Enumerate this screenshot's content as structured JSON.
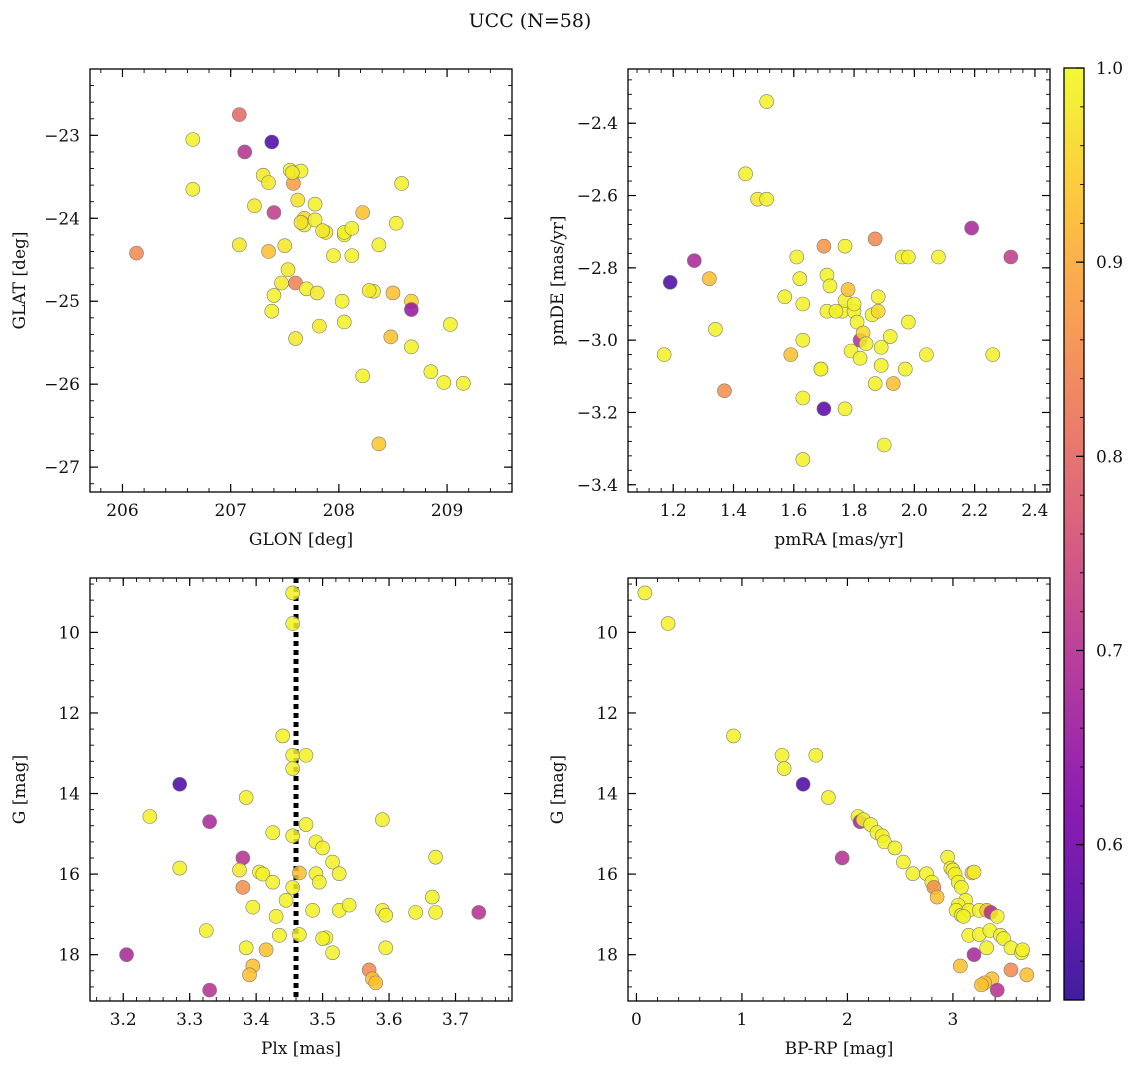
{
  "figure": {
    "title": "UCC (N=58)"
  },
  "colorbar": {
    "range": [
      0.52,
      1.0
    ],
    "ticks": [
      "0.6",
      "0.7",
      "0.8",
      "0.9",
      "1.0"
    ],
    "tick_values": [
      0.6,
      0.7,
      0.8,
      0.9,
      1.0
    ],
    "colormap": "plasma"
  },
  "chart_data": [
    {
      "type": "scatter",
      "name": "position",
      "xlabel": "GLON [deg]",
      "ylabel": "GLAT [deg]",
      "xlim": [
        205.7,
        209.6
      ],
      "ylim": [
        -27.3,
        -22.2
      ],
      "y_inverted": false,
      "xticks": [
        206,
        207,
        208,
        209
      ],
      "yticks": [
        -27,
        -26,
        -25,
        -24,
        -23
      ],
      "xticklabels": [
        "206",
        "207",
        "208",
        "209"
      ],
      "yticklabels": [
        "−27",
        "−26",
        "−25",
        "−24",
        "−23"
      ],
      "points": [
        [
          206.13,
          -24.42,
          0.85
        ],
        [
          206.65,
          -23.05,
          0.99
        ],
        [
          206.65,
          -23.65,
          0.99
        ],
        [
          207.08,
          -22.75,
          0.8
        ],
        [
          207.13,
          -23.2,
          0.7
        ],
        [
          207.38,
          -23.08,
          0.55
        ],
        [
          207.08,
          -24.32,
          0.98
        ],
        [
          207.3,
          -23.48,
          0.98
        ],
        [
          207.35,
          -23.57,
          0.98
        ],
        [
          207.22,
          -23.85,
          0.98
        ],
        [
          207.35,
          -24.4,
          0.93
        ],
        [
          207.4,
          -23.93,
          0.72
        ],
        [
          207.4,
          -24.93,
          0.99
        ],
        [
          207.38,
          -25.12,
          0.99
        ],
        [
          207.47,
          -24.78,
          0.98
        ],
        [
          207.5,
          -24.33,
          0.98
        ],
        [
          207.53,
          -24.62,
          0.98
        ],
        [
          207.55,
          -23.42,
          1.0
        ],
        [
          207.58,
          -23.58,
          0.88
        ],
        [
          207.6,
          -24.78,
          0.84
        ],
        [
          207.6,
          -25.45,
          0.98
        ],
        [
          207.62,
          -23.78,
          0.97
        ],
        [
          207.65,
          -23.43,
          0.99
        ],
        [
          207.68,
          -24.0,
          0.96
        ],
        [
          207.68,
          -24.08,
          0.99
        ],
        [
          207.7,
          -24.85,
          0.99
        ],
        [
          207.78,
          -24.02,
          0.99
        ],
        [
          207.78,
          -23.83,
          0.99
        ],
        [
          207.8,
          -24.9,
          0.98
        ],
        [
          207.82,
          -25.3,
          0.98
        ],
        [
          207.88,
          -24.17,
          0.98
        ],
        [
          207.95,
          -24.45,
          0.99
        ],
        [
          208.03,
          -25.0,
          0.99
        ],
        [
          208.05,
          -24.2,
          0.99
        ],
        [
          208.05,
          -24.17,
          0.99
        ],
        [
          208.05,
          -25.25,
          0.99
        ],
        [
          208.12,
          -24.45,
          0.99
        ],
        [
          208.12,
          -24.12,
          0.99
        ],
        [
          208.22,
          -23.93,
          0.93
        ],
        [
          208.22,
          -25.9,
          0.99
        ],
        [
          208.32,
          -24.88,
          0.99
        ],
        [
          208.37,
          -24.32,
          0.99
        ],
        [
          208.37,
          -26.72,
          0.94
        ],
        [
          208.48,
          -25.43,
          0.93
        ],
        [
          208.5,
          -24.9,
          0.93
        ],
        [
          208.53,
          -24.06,
          0.99
        ],
        [
          208.58,
          -23.58,
          0.99
        ],
        [
          208.67,
          -25.55,
          0.99
        ],
        [
          208.67,
          -25.0,
          0.95
        ],
        [
          208.67,
          -25.1,
          0.65
        ],
        [
          208.85,
          -25.85,
          0.99
        ],
        [
          208.97,
          -25.98,
          0.99
        ],
        [
          209.03,
          -25.28,
          0.99
        ],
        [
          209.15,
          -25.99,
          0.99
        ],
        [
          207.57,
          -23.45,
          0.98
        ],
        [
          207.85,
          -24.15,
          0.98
        ],
        [
          208.28,
          -24.87,
          0.98
        ],
        [
          207.65,
          -24.05,
          0.97
        ]
      ]
    },
    {
      "type": "scatter",
      "name": "proper-motion",
      "xlabel": "pmRA [mas/yr]",
      "ylabel": "pmDE [mas/yr]",
      "xlim": [
        1.05,
        2.45
      ],
      "ylim": [
        -3.42,
        -2.25
      ],
      "y_inverted": false,
      "xticks": [
        1.2,
        1.4,
        1.6,
        1.8,
        2.0,
        2.2,
        2.4
      ],
      "yticks": [
        -3.4,
        -3.2,
        -3.0,
        -2.8,
        -2.6,
        -2.4
      ],
      "xticklabels": [
        "1.2",
        "1.4",
        "1.6",
        "1.8",
        "2.0",
        "2.2",
        "2.4"
      ],
      "yticklabels": [
        "−3.4",
        "−3.2",
        "−3.0",
        "−2.8",
        "−2.6",
        "−2.4"
      ],
      "points": [
        [
          1.17,
          -3.04,
          0.99
        ],
        [
          1.19,
          -2.84,
          0.55
        ],
        [
          1.27,
          -2.78,
          0.68
        ],
        [
          1.32,
          -2.83,
          0.93
        ],
        [
          1.34,
          -2.97,
          0.99
        ],
        [
          1.37,
          -3.14,
          0.86
        ],
        [
          1.44,
          -2.54,
          0.99
        ],
        [
          1.48,
          -2.61,
          0.98
        ],
        [
          1.51,
          -2.34,
          0.99
        ],
        [
          1.51,
          -2.61,
          0.99
        ],
        [
          1.57,
          -2.88,
          0.99
        ],
        [
          1.59,
          -3.04,
          0.93
        ],
        [
          1.61,
          -2.77,
          0.99
        ],
        [
          1.62,
          -2.83,
          0.99
        ],
        [
          1.63,
          -2.9,
          0.99
        ],
        [
          1.63,
          -3.0,
          0.99
        ],
        [
          1.63,
          -3.16,
          0.99
        ],
        [
          1.63,
          -3.33,
          0.99
        ],
        [
          1.69,
          -3.08,
          0.99
        ],
        [
          1.69,
          -3.08,
          0.99
        ],
        [
          1.7,
          -3.19,
          0.57
        ],
        [
          1.7,
          -2.74,
          0.87
        ],
        [
          1.71,
          -2.82,
          0.99
        ],
        [
          1.72,
          -2.85,
          0.99
        ],
        [
          1.71,
          -2.92,
          0.99
        ],
        [
          1.76,
          -2.92,
          0.99
        ],
        [
          1.77,
          -2.74,
          0.99
        ],
        [
          1.77,
          -2.89,
          0.99
        ],
        [
          1.77,
          -3.19,
          0.99
        ],
        [
          1.78,
          -2.86,
          0.93
        ],
        [
          1.79,
          -3.03,
          0.99
        ],
        [
          1.8,
          -2.92,
          0.99
        ],
        [
          1.8,
          -2.9,
          0.99
        ],
        [
          1.81,
          -2.95,
          0.99
        ],
        [
          1.82,
          -3.0,
          0.7
        ],
        [
          1.82,
          -3.05,
          0.99
        ],
        [
          1.83,
          -2.98,
          0.96
        ],
        [
          1.86,
          -2.93,
          0.99
        ],
        [
          1.87,
          -2.72,
          0.85
        ],
        [
          1.87,
          -3.12,
          0.99
        ],
        [
          1.88,
          -2.88,
          0.99
        ],
        [
          1.88,
          -2.92,
          0.96
        ],
        [
          1.89,
          -3.07,
          0.99
        ],
        [
          1.89,
          -3.02,
          0.99
        ],
        [
          1.9,
          -3.29,
          0.99
        ],
        [
          1.92,
          -2.99,
          0.99
        ],
        [
          1.93,
          -3.12,
          0.93
        ],
        [
          1.96,
          -2.77,
          0.99
        ],
        [
          1.98,
          -2.77,
          0.99
        ],
        [
          1.98,
          -2.95,
          0.99
        ],
        [
          1.97,
          -3.08,
          0.99
        ],
        [
          2.04,
          -3.04,
          0.99
        ],
        [
          2.08,
          -2.77,
          0.99
        ],
        [
          2.19,
          -2.69,
          0.68
        ],
        [
          2.26,
          -3.04,
          0.99
        ],
        [
          2.32,
          -2.77,
          0.72
        ],
        [
          1.74,
          -2.92,
          0.99
        ],
        [
          1.84,
          -3.01,
          0.99
        ]
      ]
    },
    {
      "type": "scatter",
      "name": "parallax-magnitude",
      "xlabel": "Plx [mas]",
      "ylabel": "G [mag]",
      "xlim": [
        3.15,
        3.785
      ],
      "ylim": [
        19.15,
        8.65
      ],
      "y_inverted": true,
      "vline": {
        "x": 3.46,
        "style": "dotted"
      },
      "xticks": [
        3.2,
        3.3,
        3.4,
        3.5,
        3.6,
        3.7
      ],
      "yticks": [
        10,
        12,
        14,
        16,
        18
      ],
      "xticklabels": [
        "3.2",
        "3.3",
        "3.4",
        "3.5",
        "3.6",
        "3.7"
      ],
      "yticklabels": [
        "10",
        "12",
        "14",
        "16",
        "18"
      ],
      "points": [
        [
          3.455,
          9.02,
          0.99
        ],
        [
          3.455,
          9.78,
          0.99
        ],
        [
          3.44,
          12.57,
          0.99
        ],
        [
          3.455,
          13.05,
          0.99
        ],
        [
          3.475,
          13.05,
          0.99
        ],
        [
          3.455,
          13.38,
          0.99
        ],
        [
          3.285,
          13.77,
          0.55
        ],
        [
          3.385,
          14.1,
          0.99
        ],
        [
          3.24,
          14.57,
          0.99
        ],
        [
          3.33,
          14.7,
          0.68
        ],
        [
          3.475,
          14.77,
          0.99
        ],
        [
          3.59,
          14.65,
          0.99
        ],
        [
          3.425,
          14.97,
          0.99
        ],
        [
          3.455,
          15.05,
          0.99
        ],
        [
          3.49,
          15.2,
          0.99
        ],
        [
          3.5,
          15.35,
          0.99
        ],
        [
          3.38,
          15.6,
          0.7
        ],
        [
          3.515,
          15.7,
          0.99
        ],
        [
          3.67,
          15.58,
          0.99
        ],
        [
          3.285,
          15.85,
          0.99
        ],
        [
          3.375,
          15.9,
          0.98
        ],
        [
          3.405,
          15.95,
          0.99
        ],
        [
          3.41,
          16.0,
          0.99
        ],
        [
          3.465,
          15.97,
          0.93
        ],
        [
          3.49,
          15.99,
          0.99
        ],
        [
          3.525,
          15.99,
          0.99
        ],
        [
          3.425,
          16.2,
          0.99
        ],
        [
          3.495,
          16.2,
          0.99
        ],
        [
          3.38,
          16.33,
          0.86
        ],
        [
          3.455,
          16.33,
          0.99
        ],
        [
          3.665,
          16.57,
          0.99
        ],
        [
          3.445,
          16.65,
          0.99
        ],
        [
          3.395,
          16.82,
          0.99
        ],
        [
          3.485,
          16.9,
          0.99
        ],
        [
          3.525,
          16.9,
          0.99
        ],
        [
          3.54,
          16.77,
          0.99
        ],
        [
          3.59,
          16.9,
          0.99
        ],
        [
          3.595,
          17.02,
          0.99
        ],
        [
          3.64,
          16.95,
          0.99
        ],
        [
          3.67,
          16.95,
          0.99
        ],
        [
          3.735,
          16.95,
          0.7
        ],
        [
          3.43,
          17.05,
          0.99
        ],
        [
          3.325,
          17.4,
          0.99
        ],
        [
          3.435,
          17.52,
          0.99
        ],
        [
          3.465,
          17.5,
          0.99
        ],
        [
          3.505,
          17.58,
          0.99
        ],
        [
          3.5,
          17.6,
          0.99
        ],
        [
          3.385,
          17.83,
          0.99
        ],
        [
          3.595,
          17.83,
          0.99
        ],
        [
          3.415,
          17.88,
          0.93
        ],
        [
          3.515,
          17.95,
          0.99
        ],
        [
          3.205,
          18.0,
          0.68
        ],
        [
          3.395,
          18.28,
          0.93
        ],
        [
          3.39,
          18.5,
          0.93
        ],
        [
          3.57,
          18.38,
          0.85
        ],
        [
          3.575,
          18.6,
          0.93
        ],
        [
          3.58,
          18.7,
          0.93
        ],
        [
          3.33,
          18.88,
          0.7
        ]
      ]
    },
    {
      "type": "scatter",
      "name": "color-magnitude",
      "xlabel": "BP-RP [mag]",
      "ylabel": "G [mag]",
      "xlim": [
        -0.08,
        3.92
      ],
      "ylim": [
        19.15,
        8.65
      ],
      "y_inverted": true,
      "xticks": [
        0,
        1,
        2,
        3
      ],
      "yticks": [
        10,
        12,
        14,
        16,
        18
      ],
      "xticklabels": [
        "0",
        "1",
        "2",
        "3"
      ],
      "yticklabels": [
        "10",
        "12",
        "14",
        "16",
        "18"
      ],
      "points": [
        [
          0.08,
          9.02,
          0.99
        ],
        [
          0.3,
          9.78,
          0.99
        ],
        [
          0.92,
          12.57,
          0.99
        ],
        [
          1.38,
          13.05,
          0.99
        ],
        [
          1.4,
          13.38,
          0.99
        ],
        [
          1.7,
          13.05,
          0.99
        ],
        [
          1.58,
          13.77,
          0.55
        ],
        [
          1.82,
          14.1,
          0.99
        ],
        [
          2.1,
          14.57,
          0.99
        ],
        [
          2.12,
          14.7,
          0.68
        ],
        [
          2.15,
          14.65,
          0.99
        ],
        [
          2.22,
          14.77,
          0.99
        ],
        [
          2.28,
          14.97,
          0.99
        ],
        [
          2.33,
          15.05,
          0.99
        ],
        [
          2.35,
          15.2,
          0.99
        ],
        [
          2.45,
          15.35,
          0.99
        ],
        [
          1.95,
          15.6,
          0.7
        ],
        [
          2.53,
          15.7,
          0.99
        ],
        [
          2.62,
          15.99,
          0.99
        ],
        [
          2.75,
          15.99,
          0.99
        ],
        [
          2.8,
          16.2,
          0.99
        ],
        [
          2.82,
          16.33,
          0.86
        ],
        [
          2.85,
          16.57,
          0.93
        ],
        [
          2.95,
          15.58,
          0.99
        ],
        [
          2.98,
          15.85,
          0.99
        ],
        [
          3.0,
          15.9,
          0.99
        ],
        [
          3.02,
          16.0,
          0.99
        ],
        [
          3.05,
          16.2,
          0.99
        ],
        [
          3.08,
          16.33,
          0.99
        ],
        [
          3.12,
          16.65,
          0.99
        ],
        [
          3.05,
          16.77,
          0.99
        ],
        [
          3.03,
          16.9,
          0.99
        ],
        [
          3.08,
          17.02,
          0.99
        ],
        [
          3.15,
          16.9,
          0.99
        ],
        [
          3.18,
          15.97,
          0.93
        ],
        [
          3.2,
          15.95,
          0.99
        ],
        [
          3.25,
          16.9,
          0.99
        ],
        [
          3.32,
          16.9,
          0.93
        ],
        [
          3.36,
          16.95,
          0.7
        ],
        [
          3.42,
          17.05,
          0.99
        ],
        [
          3.15,
          17.52,
          0.99
        ],
        [
          3.25,
          17.5,
          0.99
        ],
        [
          3.35,
          17.4,
          0.99
        ],
        [
          3.32,
          17.83,
          0.99
        ],
        [
          3.45,
          17.52,
          0.99
        ],
        [
          3.48,
          17.6,
          0.99
        ],
        [
          3.55,
          17.83,
          0.99
        ],
        [
          3.65,
          17.95,
          0.99
        ],
        [
          3.66,
          17.88,
          0.99
        ],
        [
          3.2,
          18.0,
          0.68
        ],
        [
          3.07,
          18.28,
          0.93
        ],
        [
          3.55,
          18.38,
          0.85
        ],
        [
          3.7,
          18.5,
          0.93
        ],
        [
          3.37,
          18.6,
          0.93
        ],
        [
          3.3,
          18.7,
          0.93
        ],
        [
          3.27,
          18.75,
          0.93
        ],
        [
          3.42,
          18.88,
          0.7
        ],
        [
          3.1,
          17.05,
          0.99
        ]
      ]
    }
  ]
}
